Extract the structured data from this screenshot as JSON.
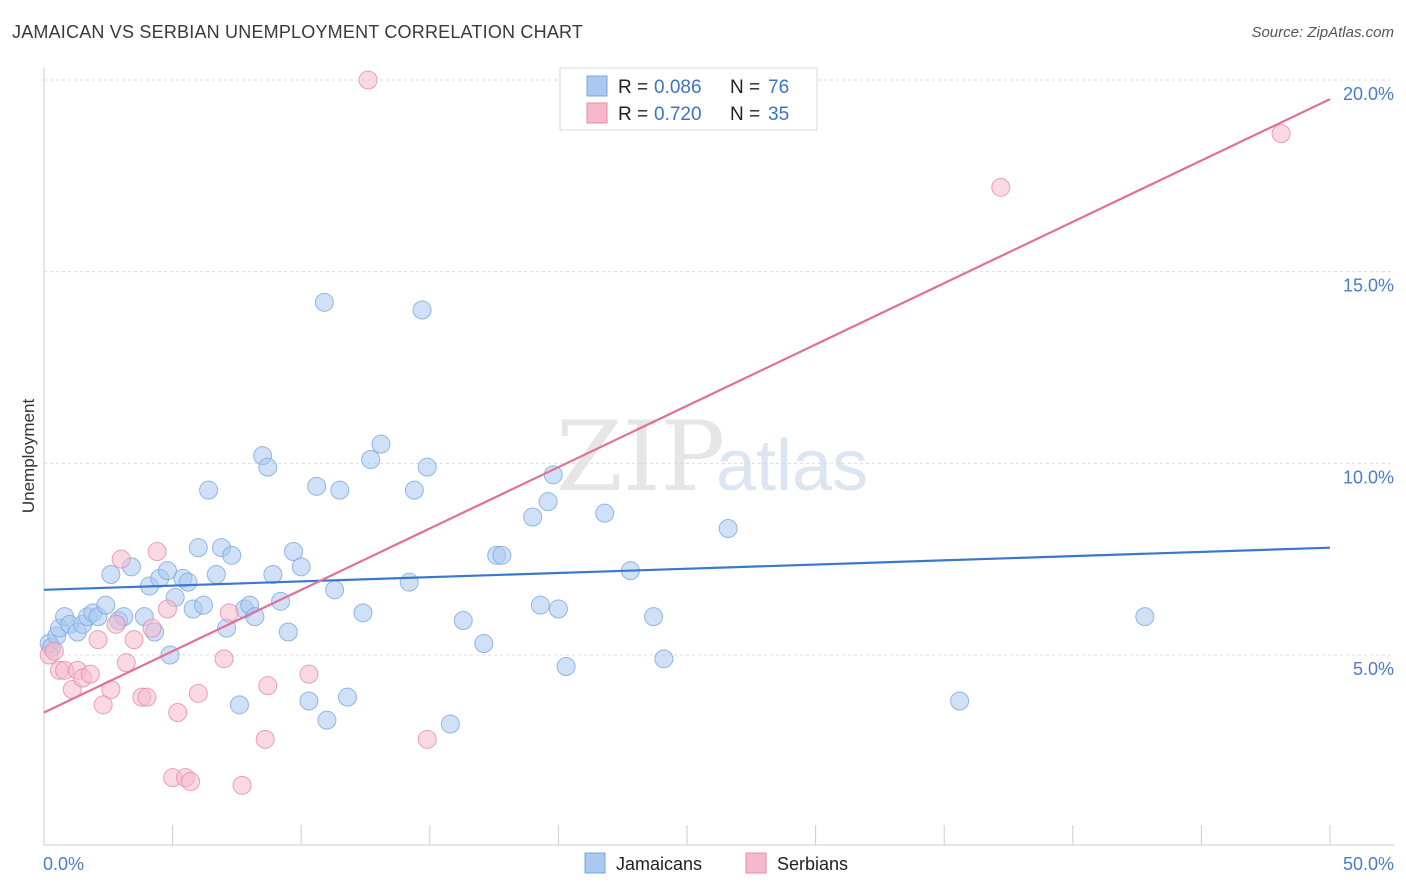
{
  "header": {
    "title": "JAMAICAN VS SERBIAN UNEMPLOYMENT CORRELATION CHART",
    "source": "Source: ZipAtlas.com"
  },
  "watermark": {
    "part1": "ZIP",
    "part2": "atlas"
  },
  "legend": {
    "rows": [
      {
        "r_label": "R = ",
        "r_value": "0.086",
        "n_label": "N = ",
        "n_value": "76"
      },
      {
        "r_label": "R = ",
        "r_value": "0.720",
        "n_label": "N = ",
        "n_value": "35"
      }
    ]
  },
  "bottom_legend": {
    "items": [
      "Jamaicans",
      "Serbians"
    ]
  },
  "chart_data": {
    "type": "scatter",
    "title": "JAMAICAN VS SERBIAN UNEMPLOYMENT CORRELATION CHART",
    "xlabel": "",
    "ylabel": "Unemployment",
    "xlim": [
      0,
      50
    ],
    "ylim": [
      0,
      20.5
    ],
    "x_tick_labels": [
      "0.0%",
      "50.0%"
    ],
    "y_ticks": [
      5,
      10,
      15,
      20
    ],
    "y_tick_labels": [
      "5.0%",
      "10.0%",
      "15.0%",
      "20.0%"
    ],
    "grid": true,
    "legend_position": "top-center",
    "colors": {
      "jamaicans_fill": "#aac8f0",
      "jamaicans_line": "#3a78d0",
      "serbians_fill": "#f6b9cc",
      "serbians_line": "#e0709a"
    },
    "series": [
      {
        "name": "Jamaicans",
        "r": 0.086,
        "n": 76,
        "trend": [
          [
            0,
            6.7
          ],
          [
            50,
            7.8
          ]
        ],
        "points": [
          [
            0.2,
            5.3
          ],
          [
            0.3,
            5.2
          ],
          [
            0.5,
            5.5
          ],
          [
            0.6,
            5.7
          ],
          [
            0.8,
            6.0
          ],
          [
            1.0,
            5.8
          ],
          [
            1.3,
            5.6
          ],
          [
            1.5,
            5.8
          ],
          [
            1.7,
            6.0
          ],
          [
            1.9,
            6.1
          ],
          [
            2.1,
            6.0
          ],
          [
            2.4,
            6.3
          ],
          [
            2.6,
            7.1
          ],
          [
            2.9,
            5.9
          ],
          [
            3.1,
            6.0
          ],
          [
            3.4,
            7.3
          ],
          [
            3.9,
            6.0
          ],
          [
            4.1,
            6.8
          ],
          [
            4.3,
            5.6
          ],
          [
            4.5,
            7.0
          ],
          [
            4.8,
            7.2
          ],
          [
            4.9,
            5.0
          ],
          [
            5.1,
            6.5
          ],
          [
            5.4,
            7.0
          ],
          [
            5.6,
            6.9
          ],
          [
            5.8,
            6.2
          ],
          [
            6.0,
            7.8
          ],
          [
            6.2,
            6.3
          ],
          [
            6.4,
            9.3
          ],
          [
            6.7,
            7.1
          ],
          [
            6.9,
            7.8
          ],
          [
            7.1,
            5.7
          ],
          [
            7.3,
            7.6
          ],
          [
            7.6,
            3.7
          ],
          [
            7.8,
            6.2
          ],
          [
            8.0,
            6.3
          ],
          [
            8.2,
            6.0
          ],
          [
            8.5,
            10.2
          ],
          [
            8.7,
            9.9
          ],
          [
            8.9,
            7.1
          ],
          [
            9.2,
            6.4
          ],
          [
            9.5,
            5.6
          ],
          [
            9.7,
            7.7
          ],
          [
            10.0,
            7.3
          ],
          [
            10.3,
            3.8
          ],
          [
            10.6,
            9.4
          ],
          [
            10.9,
            14.2
          ],
          [
            11.0,
            3.3
          ],
          [
            11.3,
            6.7
          ],
          [
            11.5,
            9.3
          ],
          [
            11.8,
            3.9
          ],
          [
            12.4,
            6.1
          ],
          [
            12.7,
            10.1
          ],
          [
            13.1,
            10.5
          ],
          [
            14.2,
            6.9
          ],
          [
            14.4,
            9.3
          ],
          [
            14.7,
            14.0
          ],
          [
            14.9,
            9.9
          ],
          [
            15.8,
            3.2
          ],
          [
            16.3,
            5.9
          ],
          [
            17.1,
            5.3
          ],
          [
            17.6,
            7.6
          ],
          [
            17.8,
            7.6
          ],
          [
            19.0,
            8.6
          ],
          [
            19.3,
            6.3
          ],
          [
            19.6,
            9.0
          ],
          [
            19.8,
            9.7
          ],
          [
            20.0,
            6.2
          ],
          [
            20.3,
            4.7
          ],
          [
            21.8,
            8.7
          ],
          [
            22.8,
            7.2
          ],
          [
            23.7,
            6.0
          ],
          [
            24.1,
            4.9
          ],
          [
            26.6,
            8.3
          ],
          [
            35.6,
            3.8
          ],
          [
            42.8,
            6.0
          ]
        ]
      },
      {
        "name": "Serbians",
        "r": 0.72,
        "n": 35,
        "trend": [
          [
            0,
            3.5
          ],
          [
            50,
            19.5
          ]
        ],
        "points": [
          [
            0.2,
            5.0
          ],
          [
            0.4,
            5.1
          ],
          [
            0.6,
            4.6
          ],
          [
            0.8,
            4.6
          ],
          [
            1.1,
            4.1
          ],
          [
            1.3,
            4.6
          ],
          [
            1.5,
            4.4
          ],
          [
            1.8,
            4.5
          ],
          [
            2.1,
            5.4
          ],
          [
            2.3,
            3.7
          ],
          [
            2.6,
            4.1
          ],
          [
            2.8,
            5.8
          ],
          [
            3.0,
            7.5
          ],
          [
            3.2,
            4.8
          ],
          [
            3.5,
            5.4
          ],
          [
            3.8,
            3.9
          ],
          [
            4.0,
            3.9
          ],
          [
            4.2,
            5.7
          ],
          [
            4.4,
            7.7
          ],
          [
            4.8,
            6.2
          ],
          [
            5.0,
            1.8
          ],
          [
            5.2,
            3.5
          ],
          [
            5.5,
            1.8
          ],
          [
            5.7,
            1.7
          ],
          [
            6.0,
            4.0
          ],
          [
            7.0,
            4.9
          ],
          [
            7.2,
            6.1
          ],
          [
            7.7,
            1.6
          ],
          [
            8.6,
            2.8
          ],
          [
            8.7,
            4.2
          ],
          [
            10.3,
            4.5
          ],
          [
            12.6,
            20.0
          ],
          [
            14.9,
            2.8
          ],
          [
            37.2,
            17.2
          ],
          [
            48.1,
            18.6
          ]
        ]
      }
    ]
  }
}
